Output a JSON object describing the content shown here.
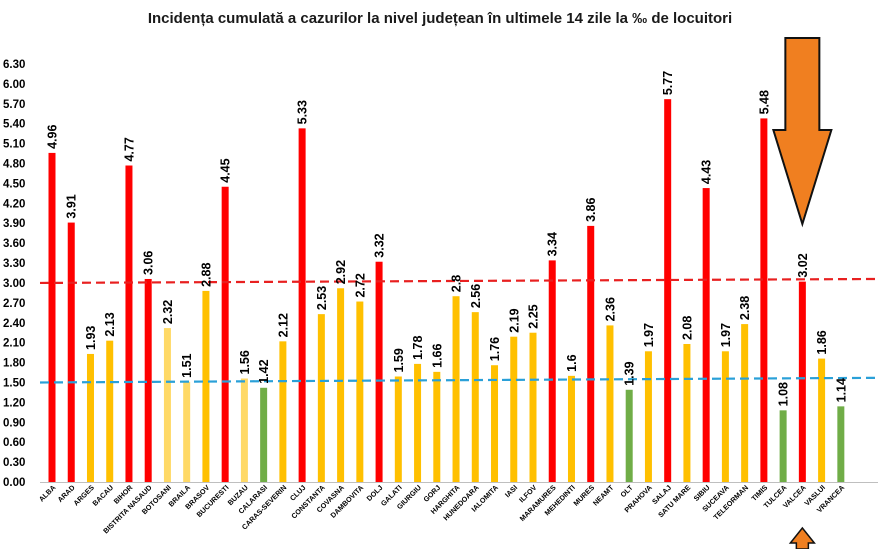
{
  "chart_data": {
    "type": "bar",
    "title": "Incidența cumulată a cazurilor la nivel județean în ultimele 14 zile la ‰ de locuitori",
    "xlabel": "",
    "ylabel": "",
    "ylim": [
      0,
      6.3
    ],
    "yticks": [
      "0.00",
      "0.30",
      "0.60",
      "0.90",
      "1.20",
      "1.50",
      "1.80",
      "2.10",
      "2.40",
      "2.70",
      "3.00",
      "3.30",
      "3.60",
      "3.90",
      "4.20",
      "4.50",
      "4.80",
      "5.10",
      "5.40",
      "5.70",
      "6.00",
      "6.30"
    ],
    "grid": false,
    "legend": "none",
    "categories": [
      "ALBA",
      "ARAD",
      "ARGES",
      "BACAU",
      "BIHOR",
      "BISTRITA NASAUD",
      "BOTOSANI",
      "BRAILA",
      "BRASOV",
      "BUCURESTI",
      "BUZAU",
      "CALARASI",
      "CARAS-SEVERIN",
      "CLUJ",
      "CONSTANTA",
      "COVASNA",
      "DAMBOVITA",
      "DOLJ",
      "GALATI",
      "GIURGIU",
      "GORJ",
      "HARGHITA",
      "HUNEDOARA",
      "IALOMITA",
      "IASI",
      "ILFOV",
      "MARAMURES",
      "MEHEDINTI",
      "MURES",
      "NEAMT",
      "OLT",
      "PRAHOVA",
      "SALAJ",
      "SATU MARE",
      "SIBIU",
      "SUCEAVA",
      "TELEORMAN",
      "TIMIS",
      "TULCEA",
      "VALCEA",
      "VASLUI",
      "VRANCEA"
    ],
    "values": [
      4.96,
      3.91,
      1.93,
      2.13,
      4.77,
      3.06,
      2.32,
      1.51,
      2.88,
      4.45,
      1.56,
      1.42,
      2.12,
      5.33,
      2.53,
      2.92,
      2.72,
      3.32,
      1.59,
      1.78,
      1.66,
      2.8,
      2.56,
      1.76,
      2.19,
      2.25,
      3.34,
      1.6,
      3.86,
      2.36,
      1.39,
      1.97,
      5.77,
      2.08,
      4.43,
      1.97,
      2.38,
      5.48,
      1.08,
      3.02,
      1.86,
      1.14
    ],
    "labels": [
      "4.96",
      "3.91",
      "1.93",
      "2.13",
      "4.77",
      "3.06",
      "2.32",
      "1.51",
      "2.88",
      "4.45",
      "1.56",
      "1.42",
      "2.12",
      "5.33",
      "2.53",
      "2.92",
      "2.72",
      "3.32",
      "1.59",
      "1.78",
      "1.66",
      "2.8",
      "2.56",
      "1.76",
      "2.19",
      "2.25",
      "3.34",
      "1.6",
      "3.86",
      "2.36",
      "1.39",
      "1.97",
      "5.77",
      "2.08",
      "4.43",
      "1.97",
      "2.38",
      "5.48",
      "1.08",
      "3.02",
      "1.86",
      "1.14"
    ],
    "bar_colors": [
      "#ff0000",
      "#ff0000",
      "#ffc000",
      "#ffc000",
      "#ff0000",
      "#ff0000",
      "#ffd966",
      "#ffd966",
      "#ffc000",
      "#ff0000",
      "#ffd966",
      "#70ad47",
      "#ffc000",
      "#ff0000",
      "#ffc000",
      "#ffc000",
      "#ffc000",
      "#ff0000",
      "#ffc000",
      "#ffc000",
      "#ffc000",
      "#ffc000",
      "#ffc000",
      "#ffc000",
      "#ffc000",
      "#ffc000",
      "#ff0000",
      "#ffc000",
      "#ff0000",
      "#ffc000",
      "#70ad47",
      "#ffc000",
      "#ff0000",
      "#ffc000",
      "#ff0000",
      "#ffc000",
      "#ffc000",
      "#ff0000",
      "#70ad47",
      "#ff0000",
      "#ffc000",
      "#70ad47"
    ],
    "reference_lines": [
      {
        "color": "#e82020",
        "style": "dashed",
        "y_start": 3.0,
        "y_end": 3.06
      },
      {
        "color": "#2aa0d8",
        "style": "dashed",
        "y_start": 1.5,
        "y_end": 1.57
      }
    ],
    "annotations": [
      {
        "type": "arrow-down",
        "target": "VALCEA",
        "color": "#f07f20"
      },
      {
        "type": "arrow-up",
        "target": "VALCEA",
        "color": "#f07f20"
      }
    ]
  }
}
